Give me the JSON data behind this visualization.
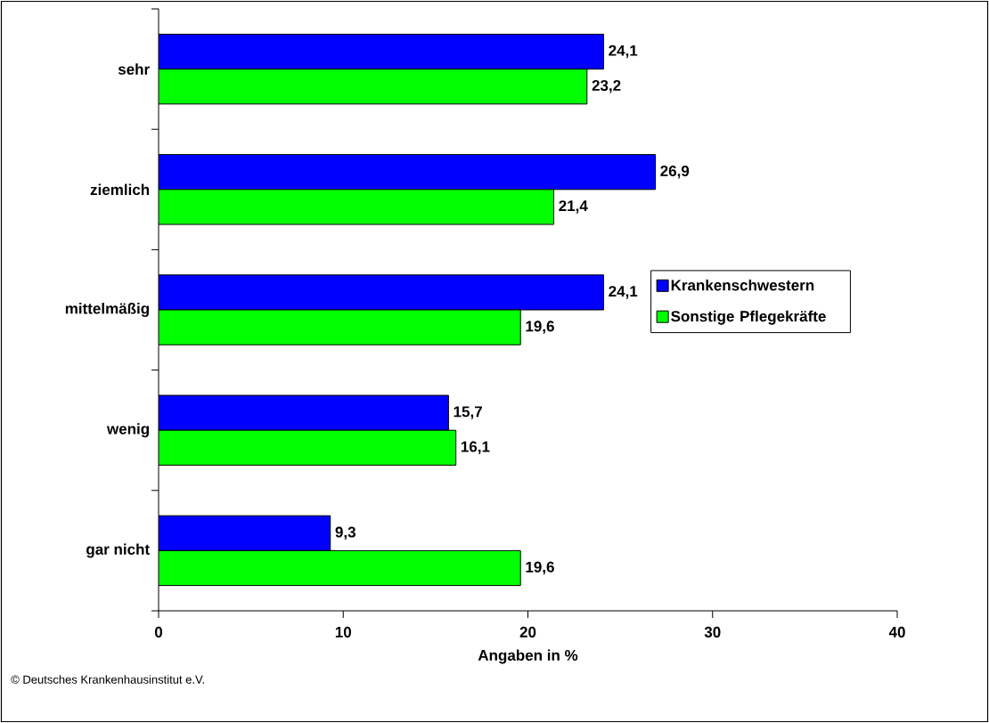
{
  "chart_data": {
    "type": "bar",
    "orientation": "horizontal",
    "categories": [
      "sehr",
      "ziemlich",
      "mittelmäßig",
      "wenig",
      "gar nicht"
    ],
    "series": [
      {
        "name": "Krankenschwestern",
        "color": "#0000ff",
        "values": [
          24.1,
          26.9,
          24.1,
          15.7,
          9.3
        ],
        "value_labels": [
          "24,1",
          "26,9",
          "24,1",
          "15,7",
          "9,3"
        ]
      },
      {
        "name": "Sonstige Pflegekräfte",
        "color": "#00ff00",
        "values": [
          23.2,
          21.4,
          19.6,
          16.1,
          19.6
        ],
        "value_labels": [
          "23,2",
          "21,4",
          "19,6",
          "16,1",
          "19,6"
        ]
      }
    ],
    "xlim": [
      0,
      40
    ],
    "xticks": [
      0,
      10,
      20,
      30,
      40
    ],
    "xlabel": "Angaben in %",
    "legend": "right",
    "annotations": [
      "© Deutsches Krankenhausinstitut e.V."
    ]
  }
}
